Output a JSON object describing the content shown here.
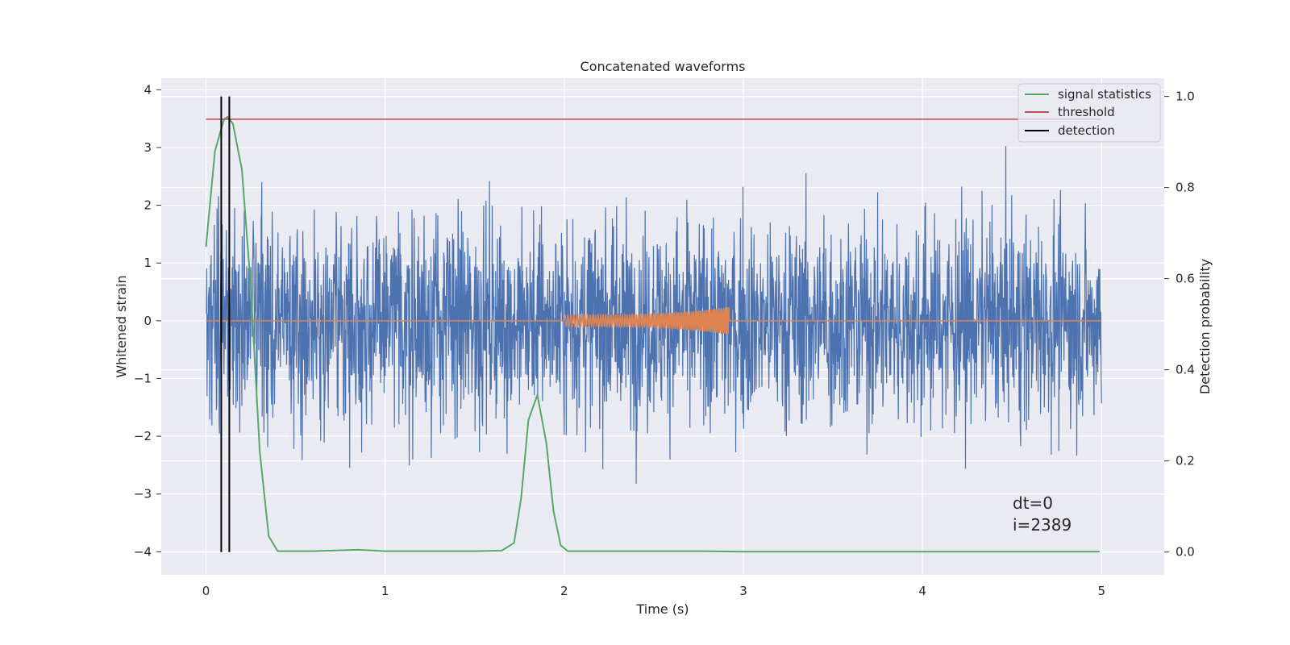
{
  "chart_data": {
    "type": "line",
    "title": "Concatenated waveforms",
    "xlabel": "Time (s)",
    "ylabel": "Whitened strain",
    "ylabel_right": "Detection probability",
    "xlim": [
      -0.25,
      5.35
    ],
    "ylim": [
      -4.4,
      4.2
    ],
    "ylim_right": [
      -0.05,
      1.04
    ],
    "xticks": [
      0,
      1,
      2,
      3,
      4,
      5
    ],
    "yticks": [
      -4,
      -3,
      -2,
      -1,
      0,
      1,
      2,
      3,
      4
    ],
    "yticks_right": [
      0.0,
      0.2,
      0.4,
      0.6,
      0.8,
      1.0
    ],
    "xtick_labels": [
      "0",
      "1",
      "2",
      "3",
      "4",
      "5"
    ],
    "ytick_labels": [
      "−4",
      "−3",
      "−2",
      "−1",
      "0",
      "1",
      "2",
      "3",
      "4"
    ],
    "ytick_labels_right": [
      "0.0",
      "0.2",
      "0.4",
      "0.6",
      "0.8",
      "1.0"
    ],
    "grid": true,
    "legend_position": "top-right",
    "legend": [
      "signal statistics",
      "threshold",
      "detection"
    ],
    "colors": {
      "strain": "#4c72b0",
      "injection": "#dd8452",
      "signal_statistics": "#55a868",
      "threshold": "#c44e52",
      "detection": "#000000",
      "axes_bg": "#eaeaf2",
      "grid": "#ffffff"
    },
    "series": [
      {
        "name": "signal statistics",
        "axis": "right",
        "color": "#55a868",
        "x": [
          0.0,
          0.05,
          0.1,
          0.12,
          0.15,
          0.2,
          0.25,
          0.3,
          0.35,
          0.4,
          0.6,
          0.85,
          1.0,
          1.3,
          1.5,
          1.65,
          1.72,
          1.76,
          1.8,
          1.85,
          1.9,
          1.94,
          1.98,
          2.02,
          2.2,
          2.5,
          2.75,
          3.0,
          4.0,
          4.99
        ],
        "y": [
          0.67,
          0.88,
          0.95,
          0.955,
          0.94,
          0.84,
          0.58,
          0.22,
          0.035,
          0.002,
          0.002,
          0.005,
          0.002,
          0.002,
          0.002,
          0.003,
          0.02,
          0.12,
          0.29,
          0.345,
          0.24,
          0.09,
          0.015,
          0.002,
          0.002,
          0.002,
          0.002,
          0.001,
          0.001,
          0.001
        ]
      },
      {
        "name": "threshold",
        "axis": "right",
        "color": "#c44e52",
        "x": [
          0.0,
          5.0
        ],
        "y": [
          0.95,
          0.95
        ]
      },
      {
        "name": "detection",
        "axis": "right",
        "color": "#000000",
        "x": [
          0.085,
          0.13
        ],
        "y": [
          0.0,
          1.0
        ]
      }
    ],
    "annotations": [
      "dt=0",
      "i=2389"
    ]
  }
}
